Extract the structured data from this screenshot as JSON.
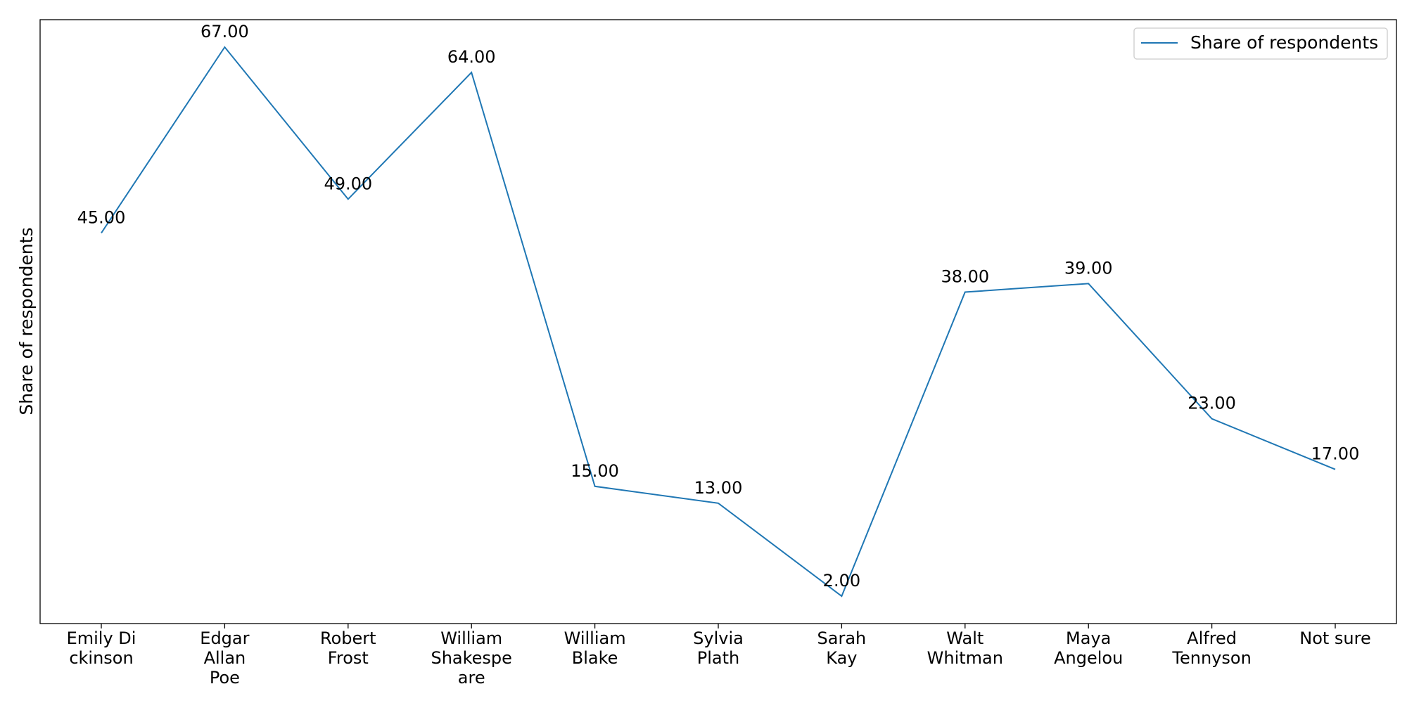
{
  "chart_data": {
    "type": "line",
    "categories": [
      [
        "Emily Di",
        "ckinson"
      ],
      [
        "Edgar",
        "Allan",
        "Poe"
      ],
      [
        "Robert",
        "Frost"
      ],
      [
        "William",
        "Shakespe",
        "are"
      ],
      [
        "William",
        "Blake"
      ],
      [
        "Sylvia",
        "Plath"
      ],
      [
        "Sarah",
        "Kay"
      ],
      [
        "Walt",
        "Whitman"
      ],
      [
        "Maya",
        "Angelou"
      ],
      [
        "Alfred",
        "Tennyson"
      ],
      [
        "Not sure"
      ]
    ],
    "series": [
      {
        "name": "Share of respondents",
        "values": [
          45,
          67,
          49,
          64,
          15,
          13,
          2,
          38,
          39,
          23,
          17
        ],
        "value_labels": [
          "45.00",
          "67.00",
          "49.00",
          "64.00",
          "15.00",
          "13.00",
          "2.00",
          "38.00",
          "39.00",
          "23.00",
          "17.00"
        ]
      }
    ],
    "title": "",
    "xlabel": "",
    "ylabel": "Share of respondents",
    "ylim": [
      -1.25,
      70.25
    ],
    "y_ticks_visible": false,
    "grid": false,
    "legend_position": "top-right",
    "colors": {
      "series": "#1f77b4",
      "axes": "#000000",
      "legend_border": "#cccccc"
    }
  }
}
